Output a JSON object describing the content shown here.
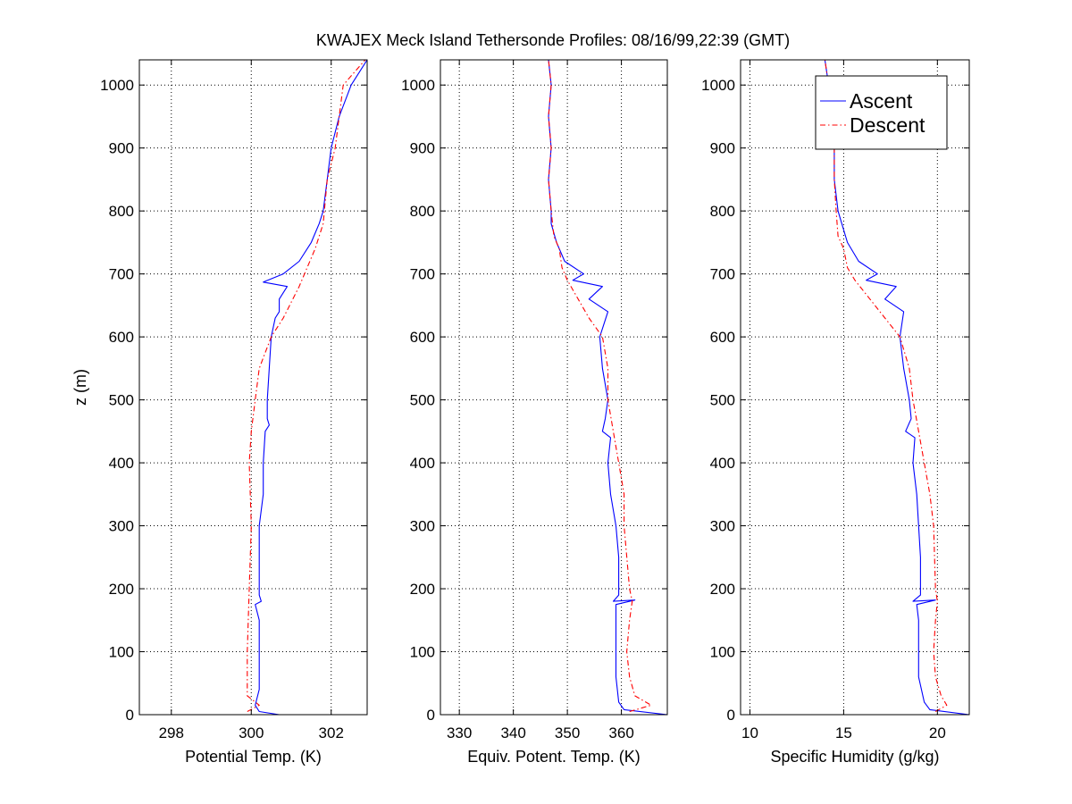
{
  "figure": {
    "title": "KWAJEX Meck Island Tethersonde Profiles: 08/16/99,22:39 (GMT)"
  },
  "legend": {
    "location": "top-right of third panel",
    "entries": [
      {
        "label": "Ascent",
        "color": "#0000ff",
        "style": "solid"
      },
      {
        "label": "Descent",
        "color": "#ff0000",
        "style": "dash-dot"
      }
    ]
  },
  "colors": {
    "ascent": "#0000ff",
    "descent": "#ff0000",
    "grid": "#000000",
    "background": "#ffffff"
  },
  "chart_data": [
    {
      "type": "line",
      "xlabel": "Potential Temp. (K)",
      "ylabel": "z (m)",
      "xlim": [
        297.2,
        302.9
      ],
      "ylim": [
        0,
        1040
      ],
      "xticks": [
        298,
        300,
        302
      ],
      "yticks": [
        0,
        100,
        200,
        300,
        400,
        500,
        600,
        700,
        800,
        900,
        1000
      ],
      "grid": true,
      "series": [
        {
          "name": "Ascent",
          "color": "#0000ff",
          "dash": "solid",
          "points": [
            [
              297.2,
              0
            ],
            [
              300.7,
              0
            ],
            [
              300.2,
              5
            ],
            [
              300.1,
              15
            ],
            [
              300.2,
              40
            ],
            [
              300.2,
              100
            ],
            [
              300.2,
              150
            ],
            [
              300.1,
              175
            ],
            [
              300.25,
              180
            ],
            [
              300.2,
              190
            ],
            [
              300.2,
              250
            ],
            [
              300.2,
              300
            ],
            [
              300.3,
              350
            ],
            [
              300.3,
              400
            ],
            [
              300.35,
              450
            ],
            [
              300.45,
              460
            ],
            [
              300.4,
              470
            ],
            [
              300.4,
              500
            ],
            [
              300.45,
              550
            ],
            [
              300.5,
              600
            ],
            [
              300.6,
              630
            ],
            [
              300.7,
              640
            ],
            [
              300.7,
              660
            ],
            [
              300.9,
              680
            ],
            [
              300.3,
              687
            ],
            [
              300.8,
              700
            ],
            [
              301.2,
              720
            ],
            [
              301.5,
              750
            ],
            [
              301.7,
              780
            ],
            [
              301.8,
              800
            ],
            [
              301.9,
              850
            ],
            [
              302.0,
              900
            ],
            [
              302.2,
              950
            ],
            [
              302.5,
              1000
            ],
            [
              302.9,
              1040
            ]
          ]
        },
        {
          "name": "Descent",
          "color": "#ff0000",
          "dash": "dash-dot",
          "points": [
            [
              299.9,
              5
            ],
            [
              300.2,
              15
            ],
            [
              299.9,
              30
            ],
            [
              299.9,
              100
            ],
            [
              299.95,
              200
            ],
            [
              300.0,
              300
            ],
            [
              299.95,
              400
            ],
            [
              300.0,
              450
            ],
            [
              300.1,
              500
            ],
            [
              300.2,
              550
            ],
            [
              300.5,
              600
            ],
            [
              300.8,
              630
            ],
            [
              301.2,
              680
            ],
            [
              301.6,
              740
            ],
            [
              301.8,
              780
            ],
            [
              301.9,
              850
            ],
            [
              302.1,
              900
            ],
            [
              302.2,
              950
            ],
            [
              302.3,
              1000
            ],
            [
              302.85,
              1040
            ]
          ]
        }
      ]
    },
    {
      "type": "line",
      "xlabel": "Equiv. Potent. Temp. (K)",
      "ylabel": "",
      "xlim": [
        326.5,
        368.5
      ],
      "ylim": [
        0,
        1040
      ],
      "xticks": [
        330,
        340,
        350,
        360
      ],
      "yticks": [
        0,
        100,
        200,
        300,
        400,
        500,
        600,
        700,
        800,
        900,
        1000
      ],
      "grid": true,
      "series": [
        {
          "name": "Ascent",
          "color": "#0000ff",
          "dash": "solid",
          "points": [
            [
              359.5,
              0
            ],
            [
              368.5,
              0
            ],
            [
              360.5,
              8
            ],
            [
              359.5,
              20
            ],
            [
              359.0,
              60
            ],
            [
              359.0,
              100
            ],
            [
              359.0,
              150
            ],
            [
              359.0,
              175
            ],
            [
              362.5,
              182
            ],
            [
              358.5,
              180
            ],
            [
              359.5,
              190
            ],
            [
              359.5,
              250
            ],
            [
              359.0,
              300
            ],
            [
              358.0,
              350
            ],
            [
              357.5,
              400
            ],
            [
              358.0,
              440
            ],
            [
              356.5,
              450
            ],
            [
              357.0,
              470
            ],
            [
              357.5,
              500
            ],
            [
              356.5,
              550
            ],
            [
              356.0,
              600
            ],
            [
              357.5,
              640
            ],
            [
              354.0,
              660
            ],
            [
              356.5,
              680
            ],
            [
              351.0,
              690
            ],
            [
              353.0,
              700
            ],
            [
              349.5,
              720
            ],
            [
              348.0,
              750
            ],
            [
              347.0,
              780
            ],
            [
              347.0,
              800
            ],
            [
              346.5,
              850
            ],
            [
              347.0,
              900
            ],
            [
              346.5,
              950
            ],
            [
              347.0,
              1000
            ],
            [
              346.5,
              1040
            ]
          ]
        },
        {
          "name": "Descent",
          "color": "#ff0000",
          "dash": "dash-dot",
          "points": [
            [
              361.5,
              5
            ],
            [
              365.5,
              15
            ],
            [
              362.5,
              30
            ],
            [
              361.5,
              60
            ],
            [
              361.0,
              100
            ],
            [
              361.5,
              150
            ],
            [
              362.0,
              180
            ],
            [
              361.5,
              200
            ],
            [
              360.5,
              300
            ],
            [
              360.5,
              350
            ],
            [
              359.5,
              400
            ],
            [
              358.5,
              450
            ],
            [
              357.5,
              500
            ],
            [
              357.5,
              550
            ],
            [
              356.5,
              600
            ],
            [
              354.0,
              630
            ],
            [
              352.0,
              660
            ],
            [
              350.0,
              690
            ],
            [
              349.0,
              710
            ],
            [
              348.5,
              740
            ],
            [
              347.5,
              760
            ],
            [
              347.0,
              800
            ],
            [
              346.5,
              850
            ],
            [
              347.0,
              900
            ],
            [
              346.5,
              950
            ],
            [
              347.0,
              1000
            ],
            [
              346.5,
              1040
            ]
          ]
        }
      ]
    },
    {
      "type": "line",
      "xlabel": "Specific Humidity (g/kg)",
      "ylabel": "",
      "xlim": [
        9.5,
        21.7
      ],
      "ylim": [
        0,
        1040
      ],
      "xticks": [
        10,
        15,
        20
      ],
      "yticks": [
        0,
        100,
        200,
        300,
        400,
        500,
        600,
        700,
        800,
        900,
        1000
      ],
      "grid": true,
      "series": [
        {
          "name": "Ascent",
          "color": "#0000ff",
          "dash": "solid",
          "points": [
            [
              9.5,
              0
            ],
            [
              21.7,
              0
            ],
            [
              19.6,
              8
            ],
            [
              19.3,
              20
            ],
            [
              19.0,
              60
            ],
            [
              19.0,
              100
            ],
            [
              19.0,
              150
            ],
            [
              18.9,
              175
            ],
            [
              19.9,
              182
            ],
            [
              18.7,
              180
            ],
            [
              19.1,
              190
            ],
            [
              19.1,
              250
            ],
            [
              19.0,
              300
            ],
            [
              18.9,
              350
            ],
            [
              18.7,
              400
            ],
            [
              18.8,
              440
            ],
            [
              18.3,
              450
            ],
            [
              18.6,
              470
            ],
            [
              18.5,
              500
            ],
            [
              18.2,
              550
            ],
            [
              18.0,
              600
            ],
            [
              18.2,
              640
            ],
            [
              17.2,
              660
            ],
            [
              17.8,
              680
            ],
            [
              16.2,
              690
            ],
            [
              16.8,
              700
            ],
            [
              15.8,
              720
            ],
            [
              15.2,
              750
            ],
            [
              14.9,
              780
            ],
            [
              14.7,
              800
            ],
            [
              14.5,
              850
            ],
            [
              14.5,
              900
            ],
            [
              14.3,
              950
            ],
            [
              14.2,
              1000
            ],
            [
              14.0,
              1040
            ]
          ]
        },
        {
          "name": "Descent",
          "color": "#ff0000",
          "dash": "dash-dot",
          "points": [
            [
              19.9,
              5
            ],
            [
              20.5,
              15
            ],
            [
              20.2,
              30
            ],
            [
              19.9,
              60
            ],
            [
              19.8,
              100
            ],
            [
              19.9,
              150
            ],
            [
              20.0,
              180
            ],
            [
              19.9,
              200
            ],
            [
              19.8,
              300
            ],
            [
              19.6,
              350
            ],
            [
              19.3,
              400
            ],
            [
              19.0,
              450
            ],
            [
              18.7,
              500
            ],
            [
              18.5,
              550
            ],
            [
              18.0,
              600
            ],
            [
              17.2,
              630
            ],
            [
              16.4,
              660
            ],
            [
              15.6,
              690
            ],
            [
              15.2,
              710
            ],
            [
              15.0,
              740
            ],
            [
              14.7,
              760
            ],
            [
              14.6,
              800
            ],
            [
              14.5,
              850
            ],
            [
              14.5,
              900
            ],
            [
              14.3,
              950
            ],
            [
              14.2,
              1000
            ],
            [
              14.0,
              1040
            ]
          ]
        }
      ]
    }
  ]
}
